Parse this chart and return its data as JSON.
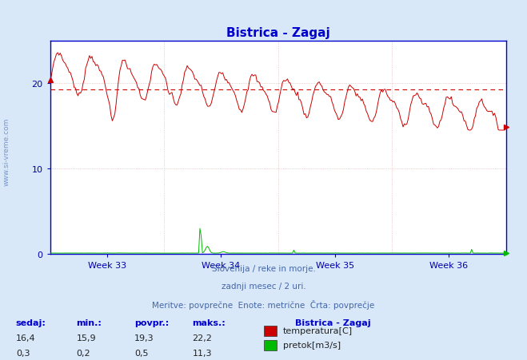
{
  "title": "Bistrica - Zagaj",
  "title_color": "#0000cc",
  "bg_color": "#d8e8f8",
  "plot_bg_color": "#ffffff",
  "temp_color": "#cc0000",
  "flow_color": "#00bb00",
  "avg_line_color": "#cc0000",
  "grid_h_color": "#ddaaaa",
  "grid_v_color": "#ddaaaa",
  "axis_color": "#0000cc",
  "tick_color": "#0000aa",
  "subtitle_color": "#4466aa",
  "watermark_color": "#6688cc",
  "x_weeks": [
    "Week 33",
    "Week 34",
    "Week 35",
    "Week 36"
  ],
  "subtitle_lines": [
    "Slovenija / reke in morje.",
    "zadnji mesec / 2 uri.",
    "Meritve: povprečne  Enote: metrične  Črta: povprečje"
  ],
  "stats_headers": [
    "sedaj:",
    "min.:",
    "povpr.:",
    "maks.:"
  ],
  "stats_temp": [
    "16,4",
    "15,9",
    "19,3",
    "22,2"
  ],
  "stats_flow": [
    "0,3",
    "0,2",
    "0,5",
    "11,3"
  ],
  "legend_title": "Bistrica - Zagaj",
  "legend_items": [
    "temperatura[C]",
    "pretok[m3/s]"
  ],
  "legend_colors": [
    "#cc0000",
    "#00bb00"
  ],
  "avg_temp": 19.3,
  "max_temp": 22.2,
  "min_temp": 15.9,
  "max_flow": 11.3,
  "ylim": [
    0,
    25
  ],
  "yticks": [
    0,
    10,
    20
  ],
  "n_points": 360
}
